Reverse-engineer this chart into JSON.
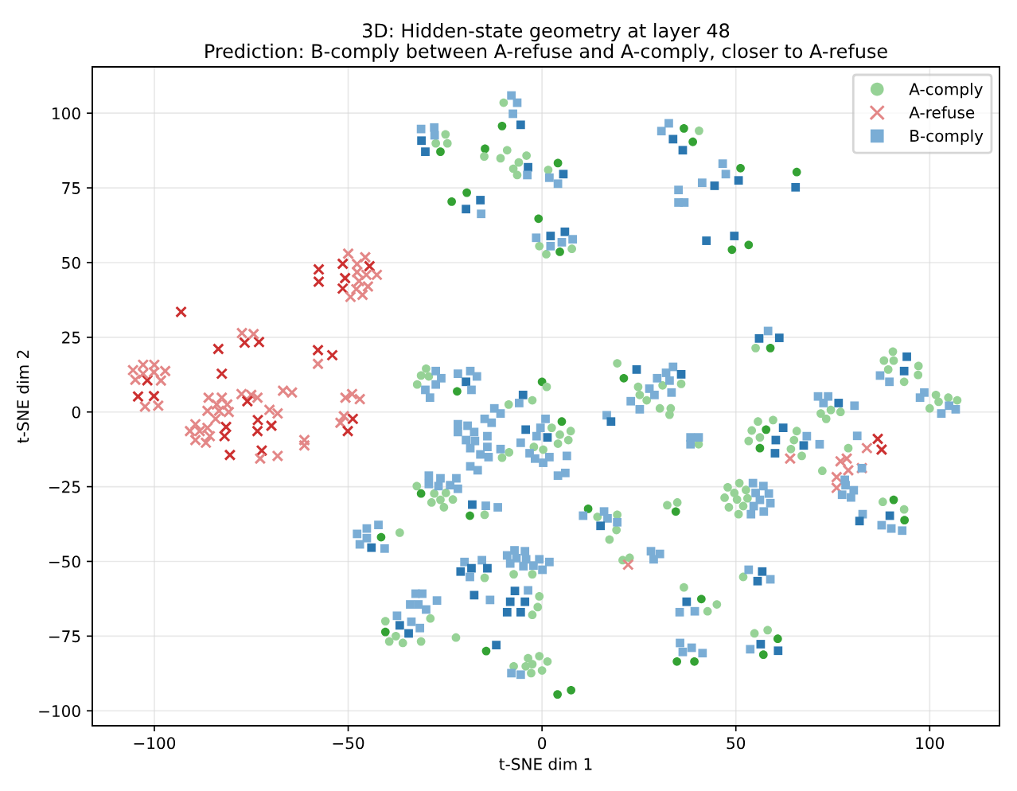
{
  "chart_data": {
    "type": "scatter",
    "title": "3D: Hidden-state geometry at layer 48",
    "subtitle": "Prediction: B-comply between A-refuse and A-comply, closer to A-refuse",
    "xlabel": "t-SNE dim 1",
    "ylabel": "t-SNE dim 2",
    "xlim": [
      -116,
      118
    ],
    "ylim": [
      -105,
      115.5
    ],
    "xticks": [
      -100,
      -50,
      0,
      50,
      100
    ],
    "yticks": [
      -100,
      -75,
      -50,
      -25,
      0,
      25,
      50,
      75,
      100
    ],
    "grid": true,
    "legend": "top right",
    "series": [
      {
        "name": "A-comply",
        "marker": "circle",
        "color": "#96d296",
        "x": [
          -9.9,
          -10.3,
          -24.9,
          -27.4,
          -24.4,
          -26.2,
          -14.7,
          -14.9,
          -9.0,
          -10.7,
          -4.0,
          -6.0,
          -7.4,
          -6.4,
          4.1,
          1.6,
          -19.4,
          -23.3,
          -0.9,
          -0.7,
          1.1,
          4.6,
          7.7,
          36.6,
          40.5,
          38.9,
          51.2,
          65.7,
          49.0,
          53.3,
          55.1,
          58.9,
          90.5,
          88.2,
          90.7,
          97.1,
          89.3,
          97.0,
          93.4,
          101.6,
          104.8,
          107.1,
          100.0,
          102.3,
          74.5,
          77.0,
          71.9,
          73.3,
          55.7,
          59.6,
          54.1,
          57.8,
          65.7,
          53.3,
          56.2,
          65.0,
          56.2,
          64.2,
          67.0,
          79.0,
          72.3,
          87.9,
          90.7,
          93.4,
          93.5,
          47.9,
          50.9,
          52.6,
          49.6,
          47.1,
          50.3,
          53.0,
          48.2,
          50.7,
          51.9,
          40.4,
          51.9,
          41.1,
          42.7,
          45.1,
          39.3,
          34.8,
          36.6,
          54.8,
          58.2,
          60.8,
          57.1,
          -29.9,
          -31.2,
          -32.2,
          -29.2,
          -21.9,
          -2.5,
          0.0,
          1.2,
          -8.6,
          19.4,
          21.1,
          24.8,
          25.2,
          31.1,
          35.9,
          27.0,
          30.4,
          33.2,
          32.9,
          -10.3,
          -8.5,
          5.1,
          7.4,
          2.5,
          4.6,
          6.8,
          4.1,
          -2.1,
          0.3,
          -32.3,
          -31.2,
          -27.8,
          -24.8,
          -26.2,
          -28.5,
          -25.3,
          -23.0,
          -18.6,
          -14.8,
          -36.7,
          -41.5,
          -40.4,
          -40.4,
          -39.4,
          -37.7,
          -35.9,
          -28.8,
          -31.2,
          -22.2,
          -14.4,
          -14.8,
          -7.3,
          -2.5,
          -0.7,
          -1.1,
          -2.5,
          -3.6,
          -0.7,
          1.4,
          -7.3,
          -4.2,
          -2.5,
          0.0,
          -2.8,
          4.0,
          7.5,
          11.9,
          14.3,
          19.4,
          19.2,
          17.4,
          20.8,
          22.6,
          32.3,
          34.9,
          34.5
        ],
        "values": [
          103.5,
          95.7,
          92.9,
          89.9,
          89.9,
          87.1,
          88.1,
          85.5,
          87.6,
          84.9,
          85.8,
          83.5,
          81.4,
          79.3,
          83.3,
          81.0,
          73.4,
          70.4,
          64.7,
          55.5,
          52.8,
          53.6,
          54.6,
          94.9,
          94.1,
          90.4,
          81.6,
          80.3,
          54.3,
          55.9,
          21.4,
          21.4,
          20.2,
          17.2,
          17.2,
          15.4,
          14.2,
          12.4,
          10.1,
          5.7,
          4.8,
          3.9,
          1.2,
          3.4,
          0.7,
          0.0,
          -0.5,
          -2.3,
          -3.2,
          -2.7,
          -6.2,
          -5.9,
          -6.4,
          -9.7,
          -8.5,
          -9.4,
          -12.1,
          -12.4,
          -14.7,
          -12.1,
          -19.7,
          -30.1,
          -29.4,
          -32.6,
          -36.2,
          -25.2,
          -23.8,
          -26.1,
          -27.1,
          -28.7,
          -29.3,
          -28.9,
          -31.9,
          -34.2,
          -31.5,
          -10.8,
          -55.2,
          -62.6,
          -66.7,
          -64.4,
          -83.5,
          -83.5,
          -58.7,
          -74.1,
          -73.0,
          -75.9,
          -81.2,
          14.5,
          12.2,
          9.2,
          11.9,
          6.9,
          3.9,
          10.1,
          8.4,
          2.5,
          16.3,
          11.3,
          8.4,
          5.7,
          8.9,
          9.4,
          3.9,
          1.2,
          1.2,
          -0.9,
          -15.3,
          -13.5,
          -3.2,
          -6.4,
          -5.3,
          -7.6,
          -9.4,
          -10.6,
          -11.7,
          -12.6,
          -24.8,
          -27.3,
          -27.3,
          -27.1,
          -29.4,
          -30.3,
          -31.9,
          -29.3,
          -34.7,
          -34.4,
          -40.4,
          -41.9,
          -70.0,
          -73.6,
          -76.8,
          -75.0,
          -77.3,
          -69.1,
          -76.8,
          -75.5,
          -80.0,
          -55.5,
          -54.3,
          -54.3,
          -61.7,
          -65.3,
          -67.9,
          -82.4,
          -81.7,
          -83.5,
          -85.1,
          -85.1,
          -84.4,
          -86.5,
          -87.4,
          -94.5,
          -93.1,
          -32.4,
          -35.1,
          -34.4,
          -39.5,
          -42.7,
          -49.6,
          -48.8,
          -31.2,
          -30.3,
          -33.3
        ],
        "colors": [
          "#96d296",
          "#34a234",
          "#96d296",
          "#96d296",
          "#96d296",
          "#34a234",
          "#34a234",
          "#96d296",
          "#96d296",
          "#96d296",
          "#96d296",
          "#96d296",
          "#96d296",
          "#96d296",
          "#34a234",
          "#96d296",
          "#34a234",
          "#34a234",
          "#34a234",
          "#96d296",
          "#96d296",
          "#34a234",
          "#96d296",
          "#34a234",
          "#96d296",
          "#34a234",
          "#34a234",
          "#34a234",
          "#34a234",
          "#34a234",
          "#96d296",
          "#34a234",
          "#96d296",
          "#96d296",
          "#96d296",
          "#96d296",
          "#96d296",
          "#96d296",
          "#96d296",
          "#96d296",
          "#96d296",
          "#96d296",
          "#96d296",
          "#96d296",
          "#96d296",
          "#96d296",
          "#96d296",
          "#96d296",
          "#96d296",
          "#96d296",
          "#96d296",
          "#34a234",
          "#96d296",
          "#96d296",
          "#96d296",
          "#96d296",
          "#34a234",
          "#96d296",
          "#96d296",
          "#96d296",
          "#96d296",
          "#96d296",
          "#34a234",
          "#96d296",
          "#34a234",
          "#96d296",
          "#96d296",
          "#96d296",
          "#96d296",
          "#96d296",
          "#96d296",
          "#96d296",
          "#96d296",
          "#96d296",
          "#96d296",
          "#96d296",
          "#96d296",
          "#34a234",
          "#96d296",
          "#96d296",
          "#34a234",
          "#34a234",
          "#96d296",
          "#96d296",
          "#96d296",
          "#34a234",
          "#34a234",
          "#96d296",
          "#96d296",
          "#96d296",
          "#96d296",
          "#34a234",
          "#96d296",
          "#34a234",
          "#96d296",
          "#96d296",
          "#96d296",
          "#34a234",
          "#96d296",
          "#96d296",
          "#96d296",
          "#96d296",
          "#96d296",
          "#96d296",
          "#96d296",
          "#96d296",
          "#96d296",
          "#96d296",
          "#34a234",
          "#96d296",
          "#96d296",
          "#96d296",
          "#96d296",
          "#96d296",
          "#96d296",
          "#96d296",
          "#96d296",
          "#34a234",
          "#96d296",
          "#96d296",
          "#96d296",
          "#96d296",
          "#96d296",
          "#96d296",
          "#34a234",
          "#96d296",
          "#96d296",
          "#34a234",
          "#96d296",
          "#34a234",
          "#96d296",
          "#96d296",
          "#96d296",
          "#96d296",
          "#96d296",
          "#96d296",
          "#34a234",
          "#96d296",
          "#96d296",
          "#96d296",
          "#96d296",
          "#96d296",
          "#96d296",
          "#96d296",
          "#96d296",
          "#96d296",
          "#96d296",
          "#96d296",
          "#96d296",
          "#96d296",
          "#96d296",
          "#34a234",
          "#34a234",
          "#34a234",
          "#96d296",
          "#96d296",
          "#96d296",
          "#96d296",
          "#96d296",
          "#96d296",
          "#96d296",
          "#96d296",
          "#34a234"
        ]
      },
      {
        "name": "A-refuse",
        "marker": "cross",
        "color": "#e38787",
        "x": [
          -93.1,
          -57.6,
          -57.6,
          -51.4,
          -50.8,
          -51.4,
          -50.0,
          -45.6,
          -47.7,
          -44.5,
          -42.6,
          -47.7,
          -45.3,
          -47.2,
          -44.9,
          -49.4,
          -46.3,
          -47.9,
          -83.5,
          -76.7,
          -73.0,
          -77.4,
          -74.4,
          -82.6,
          -57.8,
          -54.1,
          -57.8,
          -105.5,
          -102.9,
          -100.0,
          -97.2,
          -104.9,
          -101.8,
          -98.3,
          -100.1,
          -102.9,
          -104.2,
          -100.1,
          -102.4,
          -99.0,
          -86.0,
          -82.6,
          -83.9,
          -81.2,
          -86.3,
          -83.3,
          -84.2,
          -80.8,
          -89.4,
          -90.8,
          -88.3,
          -86.3,
          -89.4,
          -86.7,
          -85.7,
          -81.5,
          -81.9,
          -80.5,
          -77.5,
          -75.0,
          -76.0,
          -73.4,
          -73.3,
          -73.4,
          -69.8,
          -70.3,
          -68.2,
          -72.3,
          -72.7,
          -68.2,
          -66.8,
          -64.5,
          -61.3,
          -61.3,
          -50.7,
          -49.0,
          -47.0,
          -51.1,
          -52.0,
          -48.8,
          -50.1,
          86.6,
          87.6,
          83.8,
          77.0,
          78.6,
          79.0,
          82.5,
          76.0,
          76.0,
          64.0,
          22.2
        ],
        "values": [
          33.5,
          47.7,
          43.6,
          49.6,
          44.8,
          41.3,
          53.0,
          51.8,
          49.5,
          48.8,
          45.9,
          46.8,
          45.9,
          43.8,
          42.0,
          38.5,
          39.2,
          41.1,
          21.1,
          23.2,
          23.4,
          26.4,
          26.1,
          12.8,
          20.7,
          19.0,
          16.1,
          14.0,
          15.8,
          15.8,
          13.7,
          10.8,
          10.6,
          10.5,
          13.3,
          12.8,
          5.2,
          5.3,
          1.8,
          2.1,
          4.8,
          4.8,
          2.5,
          2.5,
          0.4,
          0.4,
          -2.3,
          0.0,
          -4.1,
          -6.4,
          -6.4,
          -5.3,
          -9.4,
          -10.3,
          -8.1,
          -5.0,
          -8.1,
          -14.4,
          6.0,
          5.7,
          3.6,
          4.8,
          -2.7,
          -6.4,
          -4.6,
          0.7,
          -0.5,
          -12.9,
          -15.6,
          -14.7,
          7.1,
          6.5,
          -9.4,
          -11.2,
          4.8,
          6.0,
          4.3,
          -1.4,
          -3.6,
          -2.3,
          -6.4,
          -9.0,
          -12.6,
          -12.1,
          -16.5,
          -15.6,
          -19.5,
          -18.8,
          -21.8,
          -25.4,
          -15.6,
          -51.1
        ],
        "colors": [
          "#cc3030",
          "#cc3030",
          "#cc3030",
          "#cc3030",
          "#cc3030",
          "#cc3030",
          "#e38787",
          "#e38787",
          "#e38787",
          "#cc3030",
          "#e38787",
          "#e38787",
          "#e38787",
          "#e38787",
          "#e38787",
          "#e38787",
          "#e38787",
          "#e38787",
          "#cc3030",
          "#cc3030",
          "#cc3030",
          "#e38787",
          "#e38787",
          "#cc3030",
          "#cc3030",
          "#cc3030",
          "#e38787",
          "#e38787",
          "#e38787",
          "#e38787",
          "#e38787",
          "#e38787",
          "#cc3030",
          "#e38787",
          "#e38787",
          "#e38787",
          "#cc3030",
          "#cc3030",
          "#e38787",
          "#e38787",
          "#e38787",
          "#e38787",
          "#e38787",
          "#e38787",
          "#e38787",
          "#e38787",
          "#e38787",
          "#e38787",
          "#e38787",
          "#e38787",
          "#e38787",
          "#e38787",
          "#e38787",
          "#e38787",
          "#e38787",
          "#cc3030",
          "#cc3030",
          "#cc3030",
          "#e38787",
          "#e38787",
          "#cc3030",
          "#e38787",
          "#cc3030",
          "#cc3030",
          "#cc3030",
          "#e38787",
          "#e38787",
          "#cc3030",
          "#e38787",
          "#e38787",
          "#e38787",
          "#e38787",
          "#e38787",
          "#e38787",
          "#e38787",
          "#e38787",
          "#e38787",
          "#e38787",
          "#e38787",
          "#cc3030",
          "#cc3030",
          "#cc3030",
          "#cc3030",
          "#e38787",
          "#e38787",
          "#e38787",
          "#e38787",
          "#e38787",
          "#e38787",
          "#e38787",
          "#e38787",
          "#e38787"
        ]
      },
      {
        "name": "B-comply",
        "marker": "square",
        "color": "#7aadd5",
        "x": [
          -7.9,
          -6.4,
          -7.5,
          -5.5,
          -31.2,
          -27.8,
          -27.7,
          -31.1,
          -30.1,
          -3.6,
          -3.8,
          5.5,
          1.9,
          4.1,
          -15.9,
          -19.6,
          -15.7,
          5.9,
          -1.5,
          2.2,
          7.9,
          5.1,
          2.2,
          32.7,
          30.8,
          33.8,
          36.3,
          46.6,
          47.4,
          41.3,
          44.5,
          50.7,
          65.4,
          35.2,
          35.2,
          36.7,
          42.4,
          49.6,
          58.3,
          56.0,
          61.2,
          94.1,
          93.4,
          87.2,
          89.6,
          98.6,
          97.5,
          103.0,
          105.0,
          106.7,
          71.2,
          73.8,
          76.5,
          72.6,
          80.6,
          62.2,
          60.3,
          68.3,
          67.5,
          60.1,
          71.6,
          81.3,
          78.1,
          78.3,
          80.4,
          77.4,
          79.7,
          82.5,
          82.7,
          81.9,
          89.7,
          87.6,
          90.1,
          92.9,
          54.4,
          57.1,
          55.1,
          58.5,
          56.2,
          58.9,
          54.6,
          57.2,
          53.9,
          38.3,
          40.4,
          38.3,
          53.3,
          56.8,
          55.6,
          58.9,
          37.3,
          39.4,
          35.5,
          35.6,
          36.3,
          38.6,
          41.4,
          56.4,
          53.7,
          60.9,
          -30.1,
          -28.9,
          -27.4,
          -26.0,
          -27.4,
          -21.7,
          -18.5,
          -16.8,
          -19.6,
          -18.2,
          -4.9,
          -5.9,
          24.4,
          27.7,
          29.7,
          32.0,
          33.8,
          35.9,
          32.9,
          33.4,
          29.0,
          22.9,
          25.2,
          16.7,
          17.8,
          -21.7,
          -19.2,
          -21.7,
          -17.5,
          -19.6,
          -17.3,
          -14.8,
          -12.3,
          -10.7,
          -13.0,
          -14.1,
          -18.5,
          -14.1,
          -15.9,
          -13.8,
          -10.7,
          -18.5,
          -16.6,
          0.9,
          -0.4,
          -4.2,
          1.4,
          -1.4,
          -5.5,
          -3.2,
          -1.8,
          0.3,
          1.9,
          6.4,
          4.1,
          6.0,
          -29.2,
          -26.2,
          -22.1,
          -23.7,
          -29.2,
          -26.7,
          -21.7,
          -18.0,
          -14.5,
          -11.4,
          -47.7,
          -45.2,
          -42.2,
          -45.2,
          -47.0,
          -44.0,
          -40.6,
          -37.4,
          -36.7,
          -32.6,
          -30.9,
          -34.0,
          -31.9,
          -29.9,
          -27.1,
          -33.7,
          -31.5,
          -34.4,
          -21.0,
          -20.0,
          -18.2,
          -15.5,
          -14.1,
          -18.6,
          -17.5,
          -13.4,
          -9.0,
          -7.1,
          -4.4,
          -6.6,
          -4.1,
          -8.2,
          -4.8,
          -2.2,
          -0.7,
          1.9,
          0.1,
          -7.0,
          -3.6,
          -8.2,
          -4.4,
          -9.0,
          -5.5,
          -11.8,
          -7.9,
          -5.5,
          10.6,
          16.0,
          16.9,
          19.4,
          15.1,
          28.1,
          30.4,
          28.8
        ],
        "values": [
          105.9,
          103.5,
          99.8,
          96.1,
          94.7,
          95.2,
          92.6,
          90.8,
          87.1,
          81.9,
          79.3,
          79.6,
          78.4,
          76.4,
          70.9,
          67.9,
          66.3,
          60.3,
          58.3,
          58.9,
          57.8,
          56.8,
          55.5,
          96.6,
          94.0,
          91.3,
          87.6,
          83.1,
          79.6,
          76.7,
          75.7,
          77.5,
          75.2,
          74.3,
          70.1,
          70.1,
          57.3,
          58.9,
          27.1,
          24.6,
          24.8,
          18.5,
          13.7,
          12.2,
          10.1,
          6.5,
          4.8,
          -0.5,
          2.1,
          0.9,
          5.2,
          5.2,
          3.0,
          3.0,
          2.1,
          -5.3,
          -9.4,
          -8.1,
          -11.2,
          -13.8,
          -10.8,
          -8.0,
          -22.7,
          -24.5,
          -26.2,
          -27.7,
          -28.6,
          -18.8,
          -34.2,
          -36.5,
          -34.7,
          -37.9,
          -39.0,
          -39.7,
          -23.8,
          -24.8,
          -27.1,
          -27.3,
          -29.4,
          -30.5,
          -31.5,
          -33.3,
          -34.2,
          -8.5,
          -8.5,
          -10.8,
          -52.8,
          -53.4,
          -56.6,
          -56.0,
          -63.5,
          -66.7,
          -67.0,
          -77.3,
          -80.3,
          -78.9,
          -80.7,
          -77.7,
          -79.4,
          -79.9,
          7.4,
          4.8,
          13.7,
          11.3,
          9.2,
          12.8,
          13.7,
          11.9,
          10.1,
          7.4,
          5.7,
          3.0,
          14.2,
          7.8,
          11.3,
          13.1,
          15.1,
          12.6,
          10.5,
          6.5,
          5.7,
          3.6,
          0.9,
          -1.1,
          -3.2,
          -4.1,
          -4.6,
          -6.7,
          -6.7,
          -9.4,
          -9.7,
          -2.3,
          1.2,
          -0.5,
          -3.6,
          -8.1,
          -12.1,
          -11.7,
          -14.2,
          -15.1,
          -12.4,
          -18.2,
          -19.5,
          -2.3,
          -5.3,
          -5.9,
          -8.5,
          -8.1,
          -10.3,
          -13.8,
          -15.6,
          -17.0,
          -15.1,
          -14.7,
          -21.3,
          -20.4,
          -21.3,
          -22.2,
          -22.2,
          -24.5,
          -24.1,
          -24.8,
          -25.7,
          -31.0,
          -31.4,
          -31.9,
          -40.8,
          -39.0,
          -37.8,
          -42.2,
          -44.3,
          -45.4,
          -45.7,
          -68.2,
          -71.4,
          -60.8,
          -60.8,
          -64.4,
          -64.4,
          -66.1,
          -63.1,
          -70.2,
          -72.3,
          -74.1,
          -53.4,
          -50.2,
          -52.3,
          -49.6,
          -52.3,
          -55.2,
          -61.3,
          -62.9,
          -48.0,
          -46.3,
          -46.6,
          -48.9,
          -49.3,
          -50.7,
          -51.6,
          -51.4,
          -49.3,
          -50.2,
          -52.8,
          -59.9,
          -59.7,
          -63.5,
          -63.5,
          -67.0,
          -67.0,
          -78.0,
          -87.4,
          -87.9,
          -34.7,
          -33.3,
          -35.6,
          -36.9,
          -38.1,
          -46.6,
          -47.5,
          -49.3
        ],
        "colors": [
          "#7aadd5",
          "#7aadd5",
          "#7aadd5",
          "#2b77b0",
          "#7aadd5",
          "#7aadd5",
          "#7aadd5",
          "#2b77b0",
          "#2b77b0",
          "#2b77b0",
          "#7aadd5",
          "#2b77b0",
          "#7aadd5",
          "#7aadd5",
          "#2b77b0",
          "#2b77b0",
          "#7aadd5",
          "#2b77b0",
          "#7aadd5",
          "#2b77b0",
          "#7aadd5",
          "#7aadd5",
          "#7aadd5",
          "#7aadd5",
          "#7aadd5",
          "#2b77b0",
          "#2b77b0",
          "#7aadd5",
          "#7aadd5",
          "#7aadd5",
          "#2b77b0",
          "#2b77b0",
          "#2b77b0",
          "#7aadd5",
          "#7aadd5",
          "#7aadd5",
          "#2b77b0",
          "#2b77b0",
          "#7aadd5",
          "#2b77b0",
          "#2b77b0",
          "#2b77b0",
          "#2b77b0",
          "#7aadd5",
          "#7aadd5",
          "#7aadd5",
          "#7aadd5",
          "#7aadd5",
          "#7aadd5",
          "#7aadd5",
          "#7aadd5",
          "#7aadd5",
          "#2b77b0",
          "#7aadd5",
          "#7aadd5",
          "#2b77b0",
          "#2b77b0",
          "#7aadd5",
          "#2b77b0",
          "#2b77b0",
          "#7aadd5",
          "#7aadd5",
          "#7aadd5",
          "#7aadd5",
          "#7aadd5",
          "#7aadd5",
          "#7aadd5",
          "#7aadd5",
          "#7aadd5",
          "#2b77b0",
          "#2b77b0",
          "#7aadd5",
          "#7aadd5",
          "#7aadd5",
          "#7aadd5",
          "#7aadd5",
          "#7aadd5",
          "#7aadd5",
          "#7aadd5",
          "#7aadd5",
          "#7aadd5",
          "#7aadd5",
          "#7aadd5",
          "#7aadd5",
          "#7aadd5",
          "#7aadd5",
          "#7aadd5",
          "#2b77b0",
          "#2b77b0",
          "#7aadd5",
          "#2b77b0",
          "#7aadd5",
          "#7aadd5",
          "#7aadd5",
          "#7aadd5",
          "#7aadd5",
          "#7aadd5",
          "#2b77b0",
          "#7aadd5",
          "#2b77b0",
          "#7aadd5",
          "#7aadd5",
          "#7aadd5",
          "#7aadd5",
          "#7aadd5",
          "#7aadd5",
          "#7aadd5",
          "#7aadd5",
          "#2b77b0",
          "#7aadd5",
          "#2b77b0",
          "#7aadd5",
          "#2b77b0",
          "#7aadd5",
          "#7aadd5",
          "#7aadd5",
          "#7aadd5",
          "#2b77b0",
          "#7aadd5",
          "#7aadd5",
          "#7aadd5",
          "#7aadd5",
          "#7aadd5",
          "#7aadd5",
          "#2b77b0",
          "#7aadd5",
          "#7aadd5",
          "#7aadd5",
          "#7aadd5",
          "#7aadd5",
          "#7aadd5",
          "#7aadd5",
          "#7aadd5",
          "#7aadd5",
          "#7aadd5",
          "#7aadd5",
          "#7aadd5",
          "#7aadd5",
          "#7aadd5",
          "#7aadd5",
          "#7aadd5",
          "#7aadd5",
          "#7aadd5",
          "#7aadd5",
          "#7aadd5",
          "#2b77b0",
          "#2b77b0",
          "#7aadd5",
          "#7aadd5",
          "#7aadd5",
          "#7aadd5",
          "#7aadd5",
          "#7aadd5",
          "#7aadd5",
          "#7aadd5",
          "#7aadd5",
          "#7aadd5",
          "#7aadd5",
          "#7aadd5",
          "#7aadd5",
          "#7aadd5",
          "#7aadd5",
          "#7aadd5",
          "#2b77b0",
          "#7aadd5",
          "#7aadd5",
          "#7aadd5",
          "#7aadd5",
          "#7aadd5",
          "#7aadd5",
          "#7aadd5",
          "#2b77b0",
          "#7aadd5",
          "#7aadd5",
          "#2b77b0",
          "#7aadd5",
          "#7aadd5",
          "#7aadd5",
          "#7aadd5",
          "#7aadd5",
          "#7aadd5",
          "#7aadd5",
          "#7aadd5",
          "#2b77b0",
          "#2b77b0",
          "#7aadd5",
          "#2b77b0",
          "#7aadd5",
          "#2b77b0",
          "#7aadd5",
          "#2b77b0",
          "#7aadd5",
          "#7aadd5",
          "#7aadd5",
          "#7aadd5",
          "#7aadd5",
          "#7aadd5",
          "#7aadd5",
          "#7aadd5",
          "#7aadd5",
          "#7aadd5",
          "#7aadd5",
          "#7aadd5",
          "#2b77b0",
          "#7aadd5",
          "#2b77b0",
          "#2b77b0",
          "#2b77b0",
          "#2b77b0",
          "#2b77b0",
          "#7aadd5",
          "#7aadd5",
          "#7aadd5",
          "#7aadd5",
          "#7aadd5",
          "#7aadd5",
          "#2b77b0",
          "#7aadd5",
          "#7aadd5",
          "#7aadd5"
        ]
      }
    ]
  }
}
